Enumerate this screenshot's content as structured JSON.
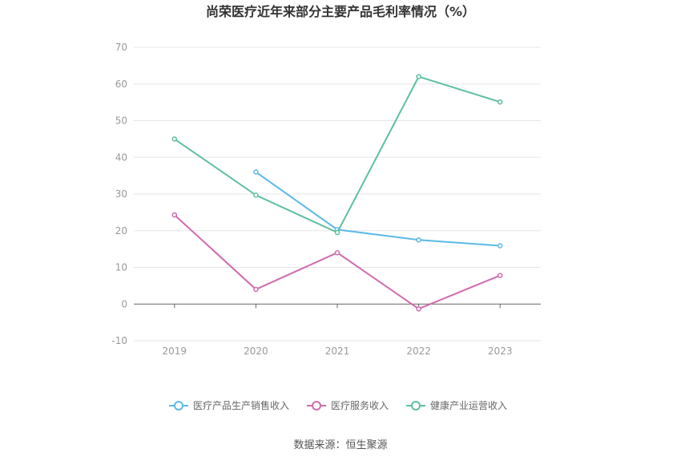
{
  "chart_data": {
    "type": "line",
    "title": "尚荣医疗近年来部分主要产品毛利率情况（%）",
    "categories": [
      "2019",
      "2020",
      "2021",
      "2022",
      "2023"
    ],
    "ylim": [
      -10,
      70
    ],
    "yticks": [
      -10,
      0,
      10,
      20,
      30,
      40,
      50,
      60,
      70
    ],
    "grid": true,
    "legend_position": "bottom",
    "series": [
      {
        "name": "医疗产品生产销售收入",
        "color": "#5ab9e8",
        "values": [
          null,
          36.0,
          20.3,
          17.5,
          15.9
        ]
      },
      {
        "name": "医疗服务收入",
        "color": "#d16aae",
        "values": [
          24.3,
          4.0,
          14.0,
          -1.3,
          7.8
        ]
      },
      {
        "name": "健康产业运营收入",
        "color": "#5cbfa0",
        "values": [
          45.0,
          29.7,
          19.5,
          62.0,
          55.1
        ]
      }
    ],
    "source": "数据来源：恒生聚源"
  }
}
